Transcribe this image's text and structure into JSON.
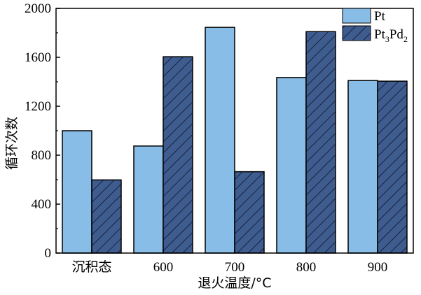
{
  "chart_data": {
    "type": "bar",
    "categories": [
      "沉积态",
      "600",
      "700",
      "800",
      "900"
    ],
    "series": [
      {
        "name": "Pt",
        "legend_main": "Pt",
        "legend_sub1": "",
        "legend_mid": "",
        "legend_sub2": "",
        "values": [
          1000,
          875,
          1845,
          1435,
          1410
        ],
        "color": "#87bde6",
        "pattern": "solid"
      },
      {
        "name": "Pt3Pd2",
        "legend_main": "Pt",
        "legend_sub1": "3",
        "legend_mid": "Pd",
        "legend_sub2": "2",
        "values": [
          598,
          1605,
          665,
          1810,
          1405
        ],
        "color": "#3f5c8e",
        "pattern": "hatch"
      }
    ],
    "ylim": [
      0,
      2000
    ],
    "yticks": [
      "0",
      "400",
      "800",
      "1200",
      "1600",
      "2000"
    ],
    "xlabel": "退火温度/°C",
    "ylabel": "循环次数",
    "title": "",
    "grid": false,
    "legend_position": "top-right"
  }
}
